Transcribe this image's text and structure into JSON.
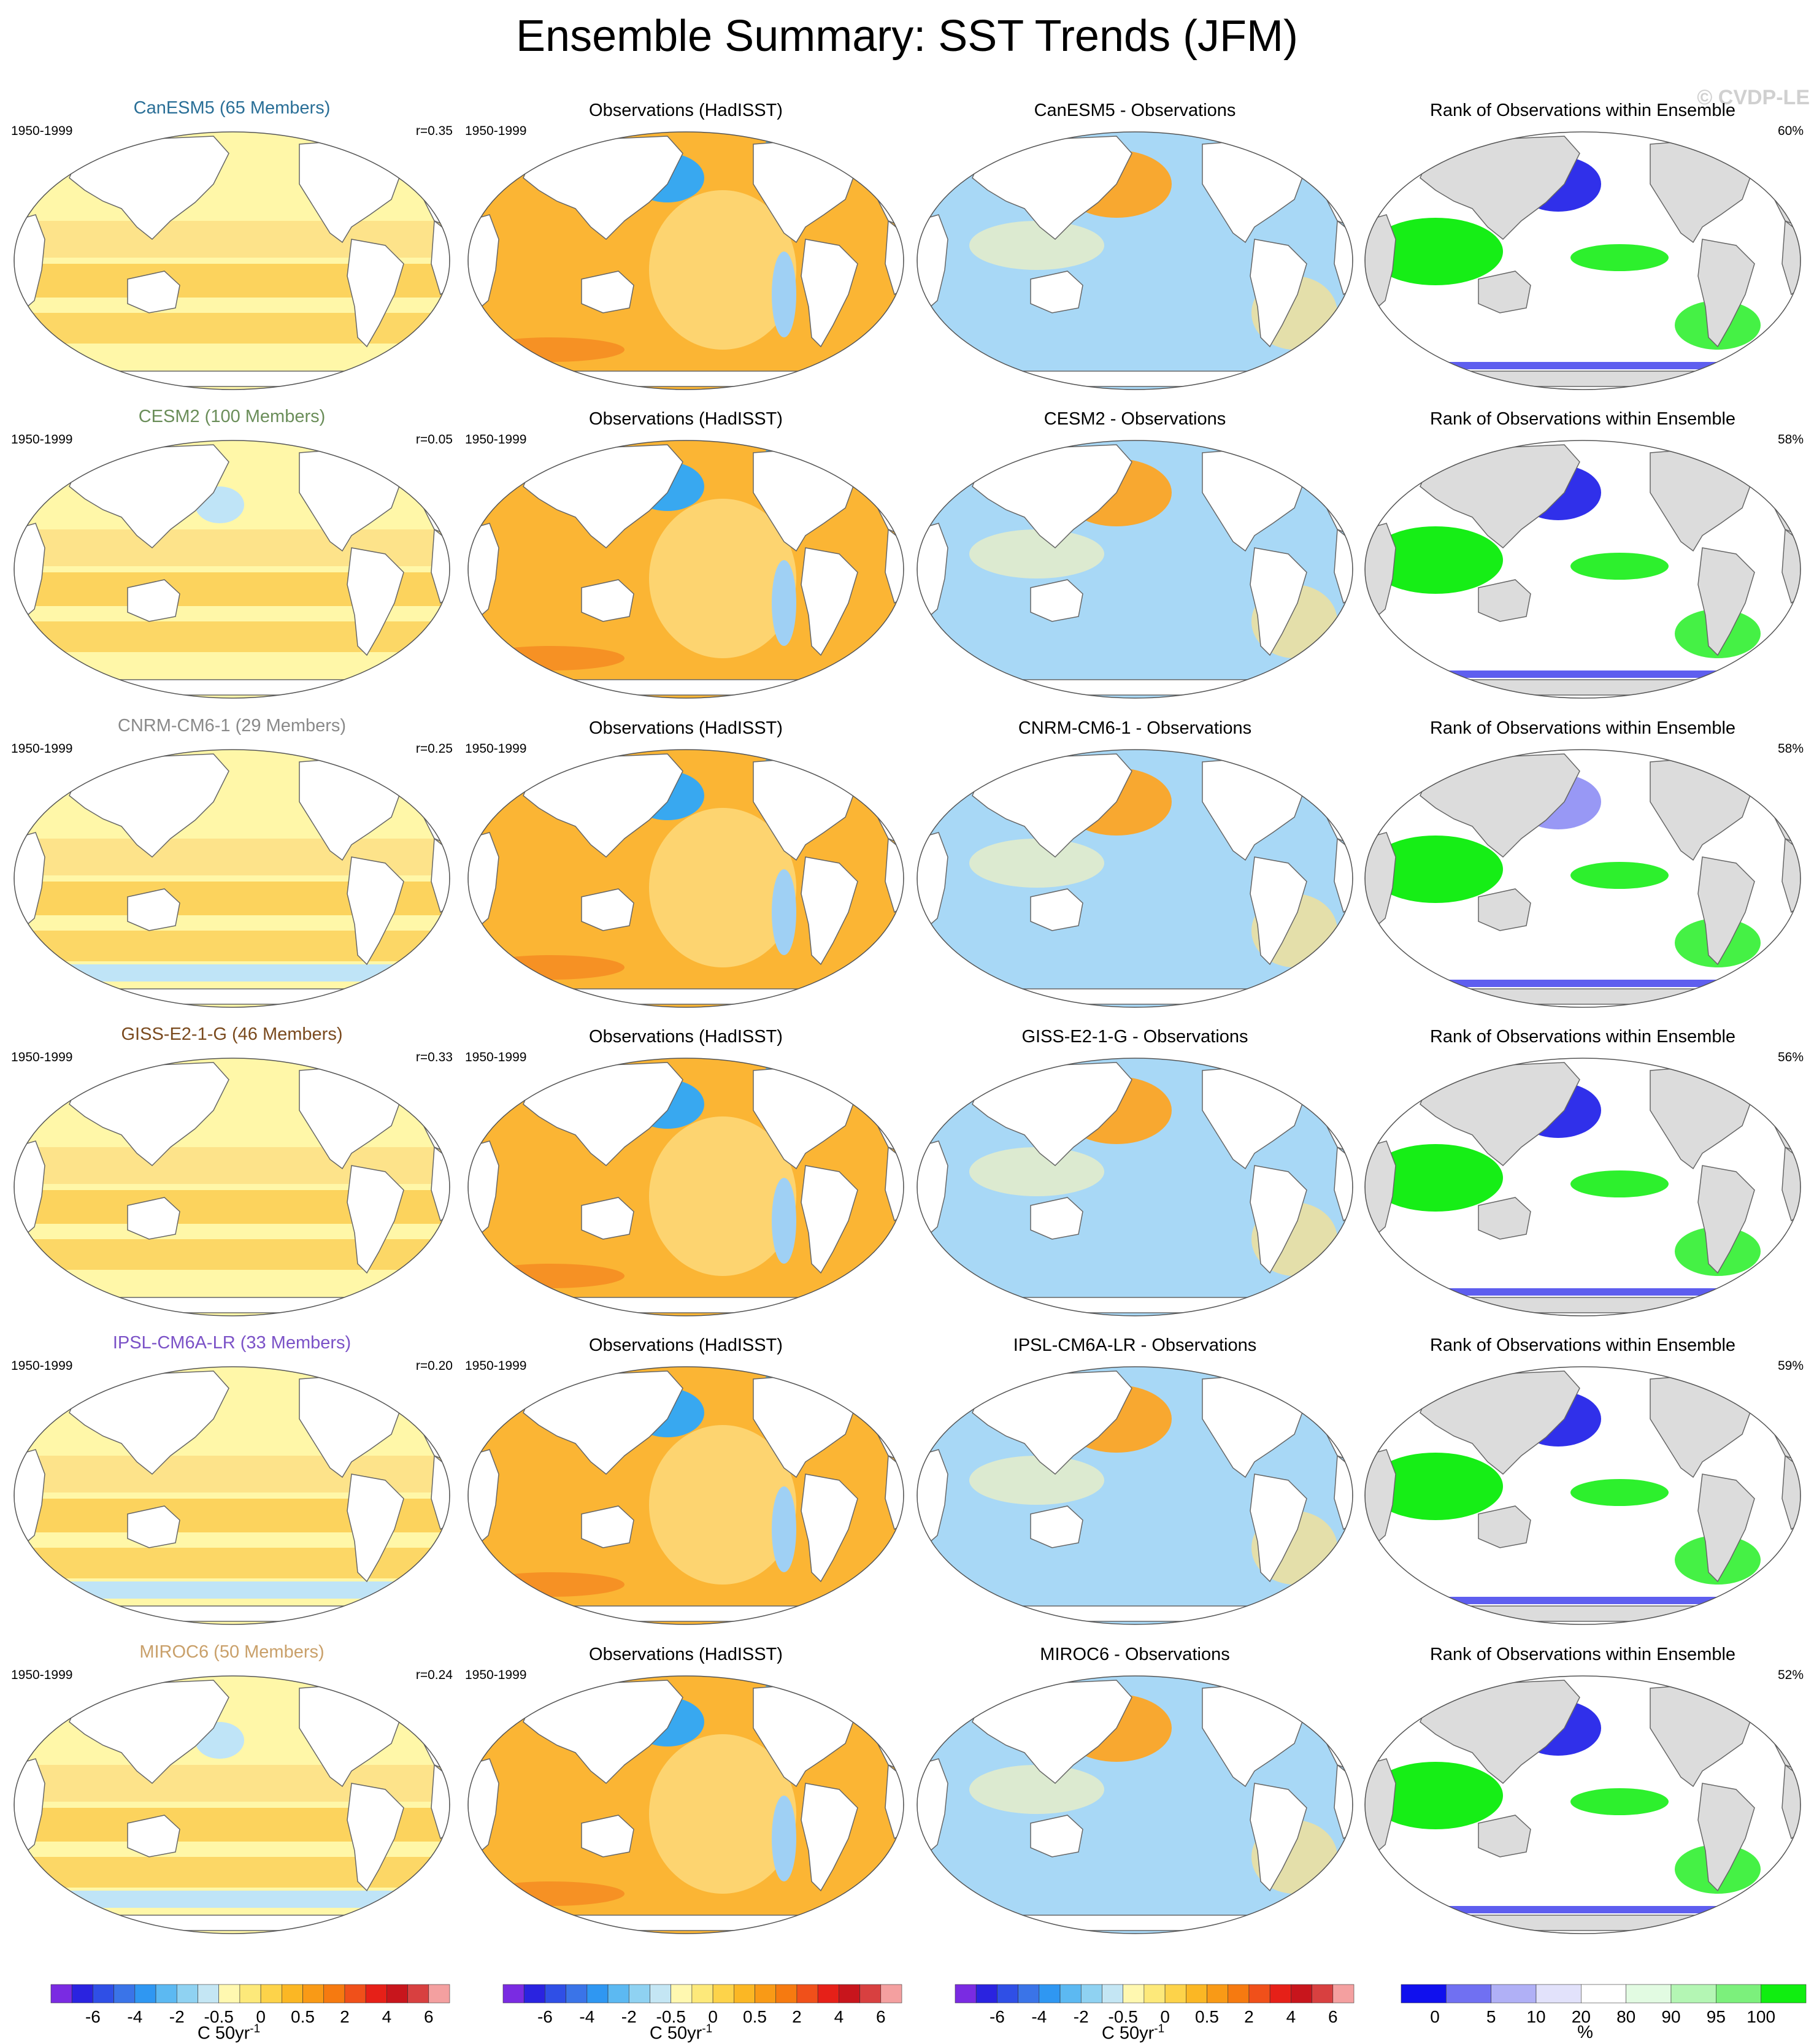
{
  "title": "Ensemble Summary: SST Trends (JFM)",
  "watermark": "© CVDP-LE",
  "period": "1950-1999",
  "obs_title": "Observations (HadISST)",
  "rank_title": "Rank of Observations within Ensemble",
  "rows": [
    {
      "model": "CanESM5 (65 Members)",
      "model_color": "#2a6f97",
      "r": "r=0.35",
      "diff_title": "CanESM5 - Observations",
      "rank_pct": "60%"
    },
    {
      "model": "CESM2 (100 Members)",
      "model_color": "#6b8e5a",
      "r": "r=0.05",
      "diff_title": "CESM2 - Observations",
      "rank_pct": "58%"
    },
    {
      "model": "CNRM-CM6-1 (29 Members)",
      "model_color": "#8a8a8a",
      "r": "r=0.25",
      "diff_title": "CNRM-CM6-1 - Observations",
      "rank_pct": "58%"
    },
    {
      "model": "GISS-E2-1-G (46 Members)",
      "model_color": "#7a4a1e",
      "r": "r=0.33",
      "diff_title": "GISS-E2-1-G - Observations",
      "rank_pct": "56%"
    },
    {
      "model": "IPSL-CM6A-LR (33 Members)",
      "model_color": "#7b52c7",
      "r": "r=0.20",
      "diff_title": "IPSL-CM6A-LR - Observations",
      "rank_pct": "59%"
    },
    {
      "model": "MIROC6 (50 Members)",
      "model_color": "#c9a06a",
      "r": "r=0.24",
      "diff_title": "MIROC6 - Observations",
      "rank_pct": "52%"
    }
  ],
  "colorbars": {
    "trend_ticks": [
      "-6",
      "-4",
      "-2",
      "-0.5",
      "0",
      "0.5",
      "2",
      "4",
      "6"
    ],
    "trend_unit": "C 50yr",
    "trend_unit_sup": "-1",
    "trend_colors": [
      "#7a2be2",
      "#2a23e0",
      "#2f4fe6",
      "#3a74e8",
      "#2f97f2",
      "#5cb9f2",
      "#8fd2f2",
      "#c4e6f4",
      "#fff8b0",
      "#fde97a",
      "#fdd34a",
      "#fbb724",
      "#f99a16",
      "#f67a10",
      "#f0501a",
      "#e62018",
      "#c8151c",
      "#d84040",
      "#f4a0a0"
    ],
    "rank_ticks": [
      "0",
      "5",
      "10",
      "20",
      "80",
      "90",
      "95",
      "100"
    ],
    "rank_unit": "%",
    "rank_colors": [
      "#1010ee",
      "#7070f2",
      "#b0b0f6",
      "#e2e2fb",
      "#ffffff",
      "#e2fbe2",
      "#b4f6b4",
      "#7cf07c",
      "#10ee10"
    ]
  },
  "map_colors": {
    "model_warm_1": "#fff7a8",
    "model_warm_2": "#fde38a",
    "model_warm_3": "#fbc94a",
    "model_cool": "#bfe4f7",
    "obs_warm": "#fbb534",
    "obs_cool": "#38a8f0",
    "diff_cool": "#a8d8f6",
    "diff_warm": "#f8a830",
    "rank_low": "#1a1ae8",
    "rank_high": "#16ee16",
    "land_rank": "#dcdcdc"
  }
}
